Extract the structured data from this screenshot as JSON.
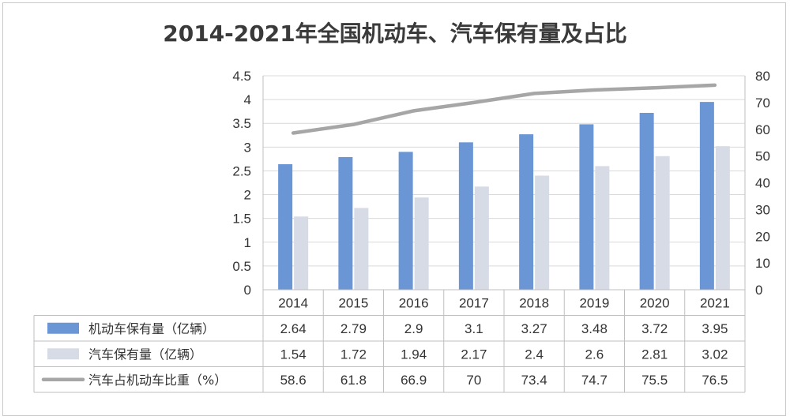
{
  "chart_data": {
    "type": "bar",
    "title": "2014-2021年全国机动车、汽车保有量及占比",
    "categories": [
      "2014",
      "2015",
      "2016",
      "2017",
      "2018",
      "2019",
      "2020",
      "2021"
    ],
    "series": [
      {
        "name": "机动车保有量（亿辆）",
        "type": "bar",
        "axis": "left",
        "color": "#6b96d6",
        "values": [
          2.64,
          2.79,
          2.9,
          3.1,
          3.27,
          3.48,
          3.72,
          3.95
        ]
      },
      {
        "name": "汽车保有量（亿辆）",
        "type": "bar",
        "axis": "left",
        "color": "#d7dbe6",
        "values": [
          1.54,
          1.72,
          1.94,
          2.17,
          2.4,
          2.6,
          2.81,
          3.02
        ]
      },
      {
        "name": "汽车占机动车比重（%）",
        "type": "line",
        "axis": "right",
        "color": "#a6a6a6",
        "values": [
          58.6,
          61.8,
          66.9,
          70,
          73.4,
          74.7,
          75.5,
          76.5
        ]
      }
    ],
    "y_left": {
      "range": [
        0,
        4.5
      ],
      "ticks": [
        "0",
        "0.5",
        "1",
        "1.5",
        "2",
        "2.5",
        "3",
        "3.5",
        "4",
        "4.5"
      ]
    },
    "y_right": {
      "range": [
        0,
        80
      ],
      "ticks": [
        "0",
        "10",
        "20",
        "30",
        "40",
        "50",
        "60",
        "70",
        "80"
      ]
    },
    "table_labels": [
      "2.64",
      "2.79",
      "2.9",
      "3.1",
      "3.27",
      "3.48",
      "3.72",
      "3.95"
    ],
    "table_row_2": [
      "1.54",
      "1.72",
      "1.94",
      "2.17",
      "2.4",
      "2.6",
      "2.81",
      "3.02"
    ],
    "table_row_3": [
      "58.6",
      "61.8",
      "66.9",
      "70",
      "73.4",
      "74.7",
      "75.5",
      "76.5"
    ],
    "grid": true,
    "legend": "data-table"
  }
}
